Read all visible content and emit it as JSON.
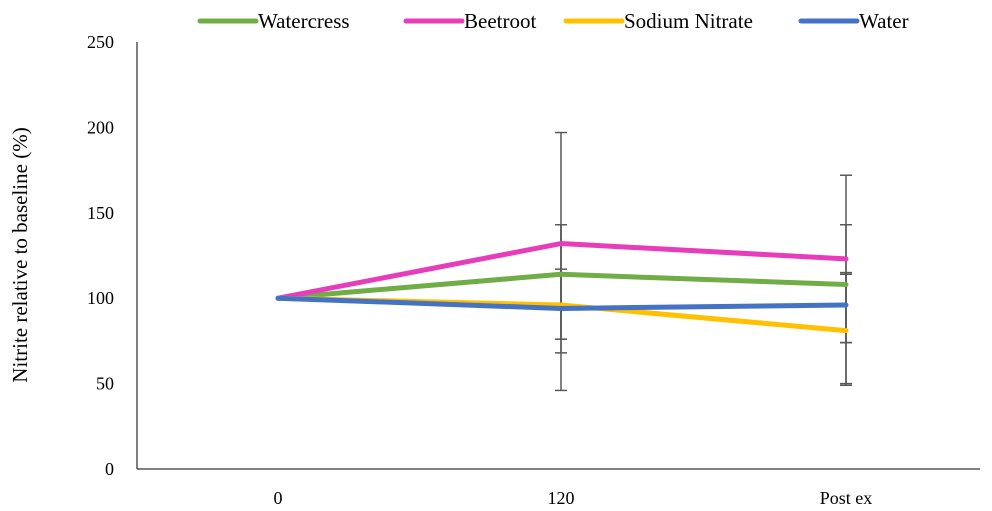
{
  "chart_data": {
    "type": "line",
    "categories": [
      "0",
      "120",
      "Post ex"
    ],
    "ylabel": "Nitrite relative to baseline (%)",
    "xlabel": "",
    "ylim": [
      0,
      250
    ],
    "yticks": [
      "0",
      "50",
      "100",
      "150",
      "200",
      "250"
    ],
    "grid": false,
    "legend": "top",
    "series": [
      {
        "name": "Watercress",
        "color": "#70AD47",
        "values": [
          100,
          114,
          108
        ],
        "err_low": [
          100,
          76,
          74
        ],
        "err_high": [
          100,
          143,
          143
        ]
      },
      {
        "name": "Beetroot",
        "color": "#E83DBA",
        "values": [
          100,
          132,
          123
        ],
        "err_low": [
          100,
          68,
          50
        ],
        "err_high": [
          100,
          197,
          172
        ]
      },
      {
        "name": "Sodium Nitrate",
        "color": "#FFC000",
        "values": [
          100,
          96,
          81
        ],
        "err_low": [
          100,
          46,
          49
        ],
        "err_high": [
          100,
          143,
          114
        ]
      },
      {
        "name": "Water",
        "color": "#4472C4",
        "values": [
          100,
          94,
          96
        ],
        "err_low": [
          100,
          76,
          74
        ],
        "err_high": [
          100,
          117,
          115
        ]
      }
    ],
    "error_bar_color": "#595959"
  }
}
